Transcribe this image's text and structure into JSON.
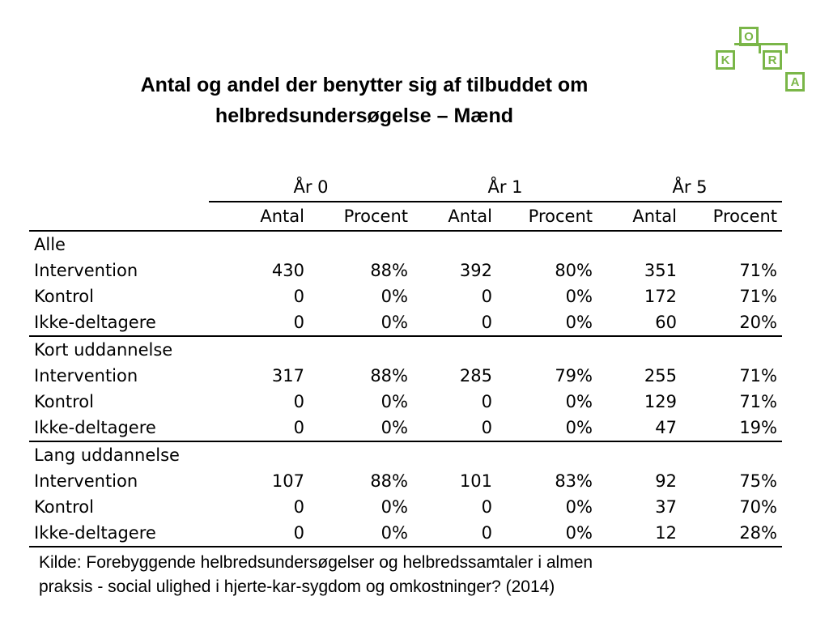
{
  "title_lines": [
    "Antal og andel der benytter sig af tilbuddet om",
    "helbredsundersøgelse – Mænd"
  ],
  "logo": {
    "letters": [
      "O",
      "K",
      "R",
      "A"
    ],
    "color": "#7ab648"
  },
  "table": {
    "years": [
      "År 0",
      "År 1",
      "År 5"
    ],
    "subheaders": [
      "Antal",
      "Procent",
      "Antal",
      "Procent",
      "Antal",
      "Procent"
    ],
    "groups": [
      {
        "label": "Alle",
        "rows": [
          {
            "label": "Intervention",
            "values": [
              "430",
              "88%",
              "392",
              "80%",
              "351",
              "71%"
            ]
          },
          {
            "label": "Kontrol",
            "values": [
              "0",
              "0%",
              "0",
              "0%",
              "172",
              "71%"
            ]
          },
          {
            "label": "Ikke-deltagere",
            "values": [
              "0",
              "0%",
              "0",
              "0%",
              "60",
              "20%"
            ]
          }
        ]
      },
      {
        "label": "Kort uddannelse",
        "rows": [
          {
            "label": "Intervention",
            "values": [
              "317",
              "88%",
              "285",
              "79%",
              "255",
              "71%"
            ]
          },
          {
            "label": "Kontrol",
            "values": [
              "0",
              "0%",
              "0",
              "0%",
              "129",
              "71%"
            ]
          },
          {
            "label": "Ikke-deltagere",
            "values": [
              "0",
              "0%",
              "0",
              "0%",
              "47",
              "19%"
            ]
          }
        ]
      },
      {
        "label": "Lang uddannelse",
        "rows": [
          {
            "label": "Intervention",
            "values": [
              "107",
              "88%",
              "101",
              "83%",
              "92",
              "75%"
            ]
          },
          {
            "label": "Kontrol",
            "values": [
              "0",
              "0%",
              "0",
              "0%",
              "37",
              "70%"
            ]
          },
          {
            "label": "Ikke-deltagere",
            "values": [
              "0",
              "0%",
              "0",
              "0%",
              "12",
              "28%"
            ]
          }
        ]
      }
    ]
  },
  "source_lines": [
    "Kilde: Forebyggende helbredsundersøgelser og helbredssamtaler i almen",
    "praksis - social ulighed i hjerte-kar-sygdom og omkostninger? (2014)"
  ]
}
